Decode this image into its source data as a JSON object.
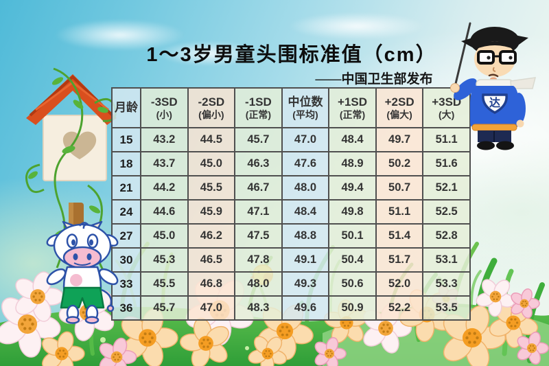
{
  "chart_data": {
    "type": "table",
    "title": "1～3岁男童头围标准值（cm）",
    "source_note": "——中国卫生部发布",
    "columns": [
      {
        "line1": "月龄",
        "line2": "",
        "tone": "blue"
      },
      {
        "line1": "-3SD",
        "line2": "(小)",
        "tone": "green"
      },
      {
        "line1": "-2SD",
        "line2": "(偏小)",
        "tone": "peach"
      },
      {
        "line1": "-1SD",
        "line2": "(正常)",
        "tone": "green"
      },
      {
        "line1": "中位数",
        "line2": "(平均)",
        "tone": "blue"
      },
      {
        "line1": "+1SD",
        "line2": "(正常)",
        "tone": "green"
      },
      {
        "line1": "+2SD",
        "line2": "(偏大)",
        "tone": "peach"
      },
      {
        "line1": "+3SD",
        "line2": "(大)",
        "tone": "green"
      }
    ],
    "rows": [
      [
        "15",
        "43.2",
        "44.5",
        "45.7",
        "47.0",
        "48.4",
        "49.7",
        "51.1"
      ],
      [
        "18",
        "43.7",
        "45.0",
        "46.3",
        "47.6",
        "48.9",
        "50.2",
        "51.6"
      ],
      [
        "21",
        "44.2",
        "45.5",
        "46.7",
        "48.0",
        "49.4",
        "50.7",
        "52.1"
      ],
      [
        "24",
        "44.6",
        "45.9",
        "47.1",
        "48.4",
        "49.8",
        "51.1",
        "52.5"
      ],
      [
        "27",
        "45.0",
        "46.2",
        "47.5",
        "48.8",
        "50.1",
        "51.4",
        "52.8"
      ],
      [
        "30",
        "45.3",
        "46.5",
        "47.8",
        "49.1",
        "50.4",
        "51.7",
        "53.1"
      ],
      [
        "33",
        "45.5",
        "46.8",
        "48.0",
        "49.3",
        "50.6",
        "52.0",
        "53.3"
      ],
      [
        "36",
        "45.7",
        "47.0",
        "48.3",
        "49.6",
        "50.9",
        "52.2",
        "53.5"
      ]
    ]
  },
  "mascot": {
    "badge_text": "达"
  },
  "colors": {
    "cell_blue": "#d5e8f1",
    "cell_green": "#e5eed8",
    "cell_peach": "#fce5d2",
    "table_border": "#4f4f4f",
    "title_text": "#0d0d0d",
    "grass_green": "#46b244",
    "roof_red": "#d94f1e",
    "sweater_blue": "#2e62d8",
    "belt_orange": "#f2a338"
  }
}
